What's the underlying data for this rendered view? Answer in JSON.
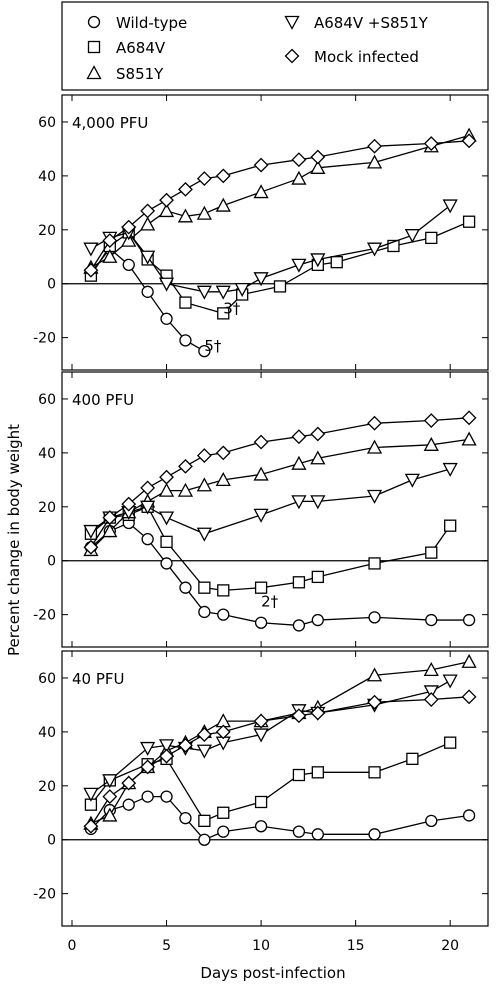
{
  "chart_data": {
    "type": "line",
    "xlabel": "Days post-infection",
    "ylabel": "Percent change in body weight",
    "xlim": [
      0,
      22
    ],
    "xticks": [
      0,
      5,
      10,
      15,
      20
    ],
    "ylim": [
      -30,
      70
    ],
    "yticks": [
      -20,
      0,
      20,
      40,
      60
    ],
    "grid": false,
    "legend_position": "top",
    "legend": [
      {
        "name": "Wild-type",
        "marker": "circle"
      },
      {
        "name": "A684V",
        "marker": "square"
      },
      {
        "name": "S851Y",
        "marker": "triangle-up"
      },
      {
        "name": "A684V +S851Y",
        "marker": "triangle-down"
      },
      {
        "name": "Mock infected",
        "marker": "diamond"
      }
    ],
    "panels": [
      {
        "title": "4,000 PFU",
        "annotations": [
          {
            "text": "3†",
            "x": 8.0,
            "y": -11.0
          },
          {
            "text": "5†",
            "x": 7.0,
            "y": -25.0
          }
        ],
        "series": [
          {
            "name": "Wild-type",
            "x": [
              1,
              2,
              3,
              4,
              5,
              6,
              7
            ],
            "y": [
              4,
              13,
              7,
              -3,
              -13,
              -21,
              -25
            ]
          },
          {
            "name": "A684V",
            "x": [
              1,
              2,
              3,
              4,
              5,
              6,
              8,
              9,
              11,
              13,
              14,
              17,
              19,
              21
            ],
            "y": [
              3,
              14,
              19,
              9,
              3,
              -7,
              -11,
              -4,
              -1,
              7,
              8,
              14,
              17,
              23
            ]
          },
          {
            "name": "S851Y",
            "x": [
              1,
              2,
              3,
              4,
              5,
              6,
              7,
              8,
              10,
              12,
              13,
              16,
              19,
              21
            ],
            "y": [
              6,
              10,
              16,
              22,
              27,
              25,
              26,
              29,
              34,
              39,
              43,
              45,
              51,
              55
            ]
          },
          {
            "name": "A684V +S851Y",
            "x": [
              1,
              2,
              3,
              4,
              5,
              7,
              8,
              9,
              10,
              12,
              13,
              16,
              18,
              20
            ],
            "y": [
              13,
              17,
              19,
              10,
              0,
              -3,
              -3,
              -2,
              2,
              7,
              9,
              13,
              18,
              29
            ]
          },
          {
            "name": "Mock infected",
            "x": [
              1,
              2,
              3,
              4,
              5,
              6,
              7,
              8,
              10,
              12,
              13,
              16,
              19,
              21
            ],
            "y": [
              5,
              16,
              21,
              27,
              31,
              35,
              39,
              40,
              44,
              46,
              47,
              51,
              52,
              53
            ]
          }
        ]
      },
      {
        "title": "400 PFU",
        "annotations": [
          {
            "text": "2†",
            "x": 10.0,
            "y": -17.0
          }
        ],
        "series": [
          {
            "name": "Wild-type",
            "x": [
              1,
              2,
              3,
              4,
              5,
              6,
              7,
              8,
              10,
              12,
              13,
              16,
              19,
              21
            ],
            "y": [
              5,
              11,
              14,
              8,
              -1,
              -10,
              -19,
              -20,
              -23,
              -24,
              -22,
              -21,
              -22,
              -22
            ]
          },
          {
            "name": "A684V",
            "x": [
              1,
              2,
              3,
              4,
              5,
              7,
              8,
              10,
              12,
              13,
              16,
              19,
              20
            ],
            "y": [
              10,
              16,
              17,
              20,
              7,
              -10,
              -11,
              -10,
              -8,
              -6,
              -1,
              3,
              13
            ]
          },
          {
            "name": "S851Y",
            "x": [
              1,
              2,
              3,
              4,
              5,
              6,
              7,
              8,
              10,
              12,
              13,
              16,
              19,
              21
            ],
            "y": [
              4,
              11,
              18,
              22,
              26,
              26,
              28,
              30,
              32,
              36,
              38,
              42,
              43,
              45
            ]
          },
          {
            "name": "A684V +S851Y",
            "x": [
              1,
              2,
              3,
              4,
              5,
              7,
              10,
              12,
              13,
              16,
              18,
              20
            ],
            "y": [
              11,
              16,
              18,
              20,
              16,
              10,
              17,
              22,
              22,
              24,
              30,
              34
            ]
          },
          {
            "name": "Mock infected",
            "x": [
              1,
              2,
              3,
              4,
              5,
              6,
              7,
              8,
              10,
              12,
              13,
              16,
              19,
              21
            ],
            "y": [
              5,
              16,
              21,
              27,
              31,
              35,
              39,
              40,
              44,
              46,
              47,
              51,
              52,
              53
            ]
          }
        ]
      },
      {
        "title": "40 PFU",
        "annotations": [],
        "series": [
          {
            "name": "Wild-type",
            "x": [
              1,
              2,
              3,
              4,
              5,
              6,
              7,
              8,
              10,
              12,
              13,
              16,
              19,
              21
            ],
            "y": [
              4,
              11,
              13,
              16,
              16,
              8,
              0,
              3,
              5,
              3,
              2,
              2,
              7,
              9
            ]
          },
          {
            "name": "A684V",
            "x": [
              1,
              2,
              4,
              5,
              7,
              8,
              10,
              12,
              13,
              16,
              18,
              20
            ],
            "y": [
              13,
              22,
              28,
              30,
              7,
              10,
              14,
              24,
              25,
              25,
              30,
              36
            ]
          },
          {
            "name": "S851Y",
            "x": [
              1,
              2,
              3,
              4,
              5,
              6,
              7,
              8,
              10,
              12,
              13,
              16,
              19,
              21
            ],
            "y": [
              6,
              9,
              21,
              27,
              33,
              36,
              40,
              44,
              44,
              47,
              49,
              61,
              63,
              66
            ]
          },
          {
            "name": "A684V +S851Y",
            "x": [
              1,
              2,
              4,
              5,
              6,
              7,
              8,
              10,
              12,
              13,
              16,
              19,
              20
            ],
            "y": [
              17,
              22,
              34,
              35,
              34,
              33,
              36,
              39,
              48,
              47,
              50,
              55,
              59
            ]
          },
          {
            "name": "Mock infected",
            "x": [
              1,
              2,
              3,
              4,
              5,
              6,
              7,
              8,
              10,
              12,
              13,
              16,
              19,
              21
            ],
            "y": [
              5,
              16,
              21,
              27,
              31,
              35,
              39,
              40,
              44,
              46,
              47,
              51,
              52,
              53
            ]
          }
        ]
      }
    ]
  }
}
